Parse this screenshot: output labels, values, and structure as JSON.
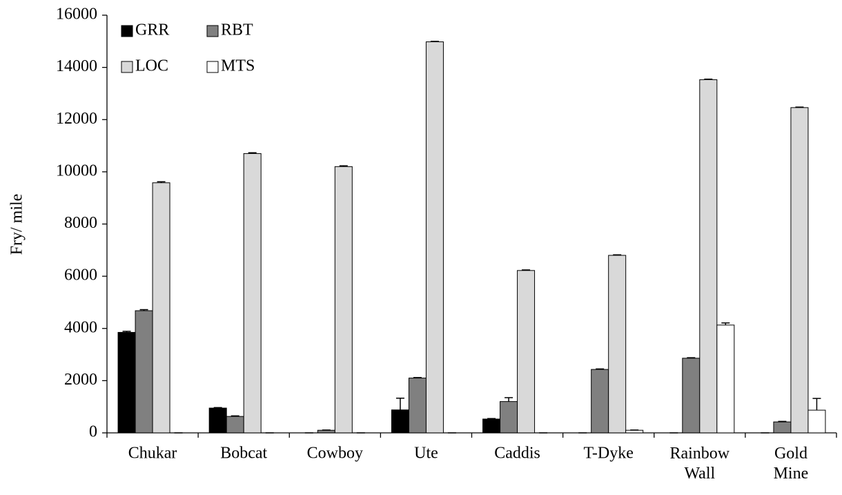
{
  "chart_data": {
    "type": "bar",
    "y_label": "Fry/ mile",
    "categories": [
      "Chukar",
      "Bobcat",
      "Cowboy",
      "Ute",
      "Caddis",
      "T-Dyke",
      "Rainbow Wall",
      "Gold Mine"
    ],
    "series": [
      {
        "name": "GRR",
        "color": "#000000",
        "values": [
          3850,
          950,
          0,
          880,
          530,
          0,
          0,
          0
        ],
        "errors": [
          40,
          20,
          0,
          450,
          20,
          0,
          0,
          0
        ]
      },
      {
        "name": "RBT",
        "color": "#808080",
        "values": [
          4680,
          630,
          100,
          2100,
          1200,
          2430,
          2860,
          420
        ],
        "errors": [
          40,
          20,
          10,
          20,
          150,
          20,
          20,
          20
        ]
      },
      {
        "name": "LOC",
        "color": "#d9d9d9",
        "values": [
          9580,
          10700,
          10200,
          14980,
          6220,
          6800,
          13530,
          12460
        ],
        "errors": [
          40,
          30,
          30,
          20,
          20,
          20,
          20,
          20
        ]
      },
      {
        "name": "MTS",
        "color": "#ffffff",
        "values": [
          0,
          0,
          0,
          0,
          0,
          100,
          4130,
          870
        ],
        "errors": [
          0,
          0,
          0,
          0,
          0,
          10,
          80,
          450
        ]
      }
    ],
    "ylim": [
      0,
      16000
    ],
    "yticks": [
      0,
      2000,
      4000,
      6000,
      8000,
      10000,
      12000,
      14000,
      16000
    ],
    "grid": false,
    "legend": "top-left"
  }
}
